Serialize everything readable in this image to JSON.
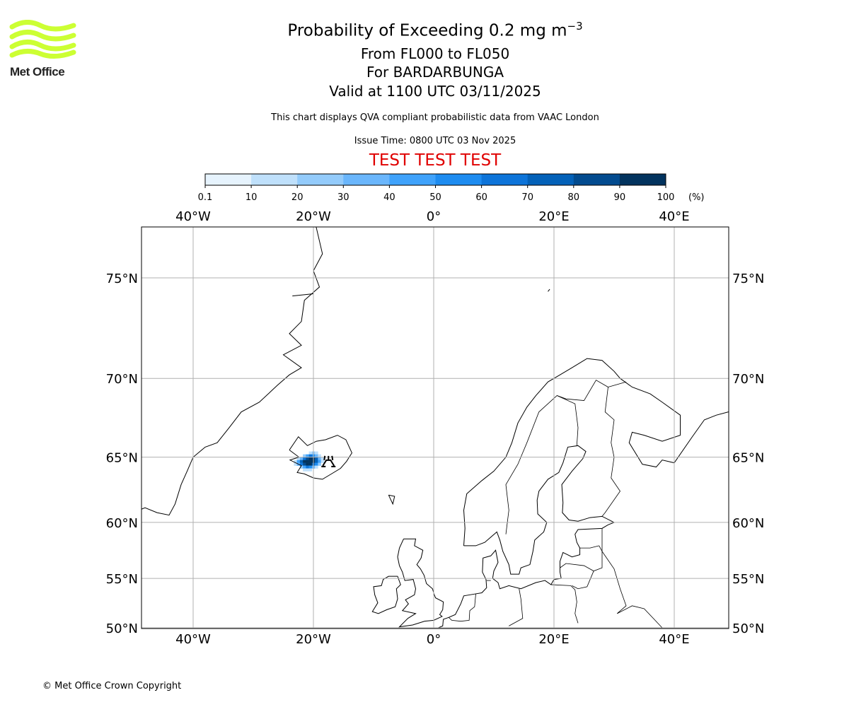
{
  "header": {
    "title": "Probability of Exceeding 0.2 mg m",
    "title_sup": "−3",
    "levels": "From FL000 to FL050",
    "volcano": "For BARDARBUNGA",
    "valid": "Valid at 1100 UTC 03/11/2025",
    "description": "This chart displays QVA compliant probabilistic data from VAAC London",
    "issue_time": "Issue Time: 0800 UTC 03 Nov 2025",
    "test_banner": "TEST TEST TEST"
  },
  "logo": {
    "text": "Met Office",
    "color": "#ccff33"
  },
  "colorbar": {
    "ticks": [
      "0.1",
      "10",
      "20",
      "30",
      "40",
      "50",
      "60",
      "70",
      "80",
      "90",
      "100"
    ],
    "unit": "(%)",
    "colors": [
      "#e6f3fd",
      "#bfe0fb",
      "#93cbfb",
      "#6ab6fc",
      "#3fa2fb",
      "#1e8cf0",
      "#0d74d9",
      "#0361b8",
      "#024b8f",
      "#02335e"
    ]
  },
  "map": {
    "lon_range": [
      -48.5,
      49
    ],
    "lat_range": [
      50,
      77.5
    ],
    "lon_ticks": [
      {
        "v": -40,
        "label": "40°W"
      },
      {
        "v": -20,
        "label": "20°W"
      },
      {
        "v": 0,
        "label": "0°"
      },
      {
        "v": 20,
        "label": "20°E"
      },
      {
        "v": 40,
        "label": "40°E"
      }
    ],
    "lat_ticks": [
      {
        "v": 75,
        "label": "75°N"
      },
      {
        "v": 70,
        "label": "70°N"
      },
      {
        "v": 65,
        "label": "65°N"
      },
      {
        "v": 60,
        "label": "60°N"
      },
      {
        "v": 55,
        "label": "55°N"
      },
      {
        "v": 50,
        "label": "50°N"
      }
    ],
    "volcano_location": {
      "lon": -17.5,
      "lat": 64.64
    },
    "plume_cells": [
      [
        -20.5,
        65.3,
        15
      ],
      [
        -20,
        65.3,
        25
      ],
      [
        -19.5,
        65.3,
        15
      ],
      [
        -21.5,
        65.1,
        25
      ],
      [
        -21,
        65.1,
        45
      ],
      [
        -20.5,
        65.1,
        60
      ],
      [
        -20,
        65.1,
        55
      ],
      [
        -19.5,
        65.1,
        35
      ],
      [
        -19,
        65.1,
        15
      ],
      [
        -22.5,
        64.9,
        15
      ],
      [
        -22,
        64.9,
        35
      ],
      [
        -21.5,
        64.9,
        65
      ],
      [
        -21,
        64.9,
        85
      ],
      [
        -20.5,
        64.9,
        95
      ],
      [
        -20,
        64.9,
        90
      ],
      [
        -19.5,
        64.9,
        70
      ],
      [
        -19,
        64.9,
        35
      ],
      [
        -18.5,
        64.9,
        15
      ],
      [
        -23,
        64.7,
        15
      ],
      [
        -22.5,
        64.7,
        40
      ],
      [
        -22,
        64.7,
        75
      ],
      [
        -21.5,
        64.7,
        95
      ],
      [
        -21,
        64.7,
        95
      ],
      [
        -20.5,
        64.7,
        95
      ],
      [
        -20,
        64.7,
        90
      ],
      [
        -19.5,
        64.7,
        75
      ],
      [
        -19,
        64.7,
        45
      ],
      [
        -18.5,
        64.7,
        15
      ],
      [
        -23,
        64.5,
        10
      ],
      [
        -22.5,
        64.5,
        30
      ],
      [
        -22,
        64.5,
        60
      ],
      [
        -21.5,
        64.5,
        85
      ],
      [
        -21,
        64.5,
        95
      ],
      [
        -20.5,
        64.5,
        90
      ],
      [
        -20,
        64.5,
        75
      ],
      [
        -19.5,
        64.5,
        50
      ],
      [
        -19,
        64.5,
        20
      ],
      [
        -22,
        64.3,
        25
      ],
      [
        -21.5,
        64.3,
        45
      ],
      [
        -21,
        64.3,
        60
      ],
      [
        -20.5,
        64.3,
        50
      ],
      [
        -20,
        64.3,
        30
      ],
      [
        -19.5,
        64.3,
        10
      ],
      [
        -21.5,
        64.1,
        10
      ],
      [
        -21,
        64.1,
        15
      ],
      [
        -20.5,
        64.1,
        10
      ]
    ]
  },
  "footer": {
    "copyright": "© Met Office Crown Copyright"
  }
}
